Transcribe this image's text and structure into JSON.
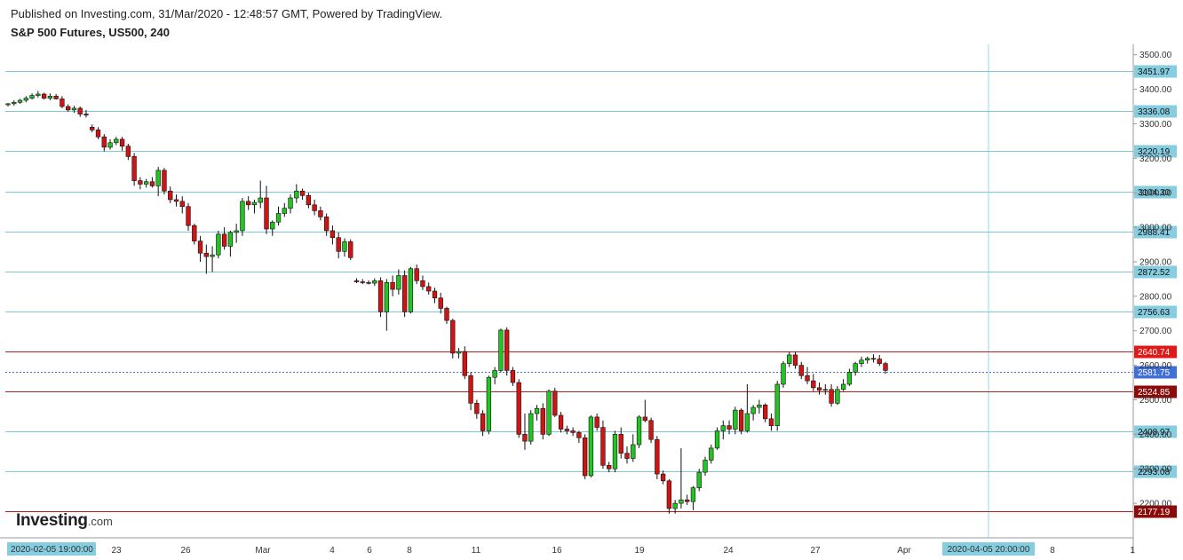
{
  "header": {
    "publish_line": "Published on Investing.com, 31/Mar/2020 - 12:48:57 GMT, Powered by TradingView.",
    "title": "S&P 500 Futures, US500, 240"
  },
  "logo": {
    "name": "Investing",
    "suffix": ".com"
  },
  "colors": {
    "up": "#22c322",
    "down": "#d01414",
    "wick": "#111111",
    "level_line": "#7fc8d8",
    "resistance_line": "#b22222",
    "current_price": "#3f6fd8",
    "label_bg": "#86cde0",
    "crosshair": "#9fd3e2"
  },
  "chart_data": {
    "type": "candlestick",
    "title": "S&P 500 Futures, US500, 240",
    "y_axis": {
      "range": [
        2100,
        3530
      ],
      "ticks": [
        "2200.00",
        "2300.00",
        "2400.00",
        "2500.00",
        "2600.00",
        "2700.00",
        "2800.00",
        "2900.00",
        "3000.00",
        "3100.00",
        "3200.00",
        "3300.00",
        "3400.00",
        "3500.00"
      ]
    },
    "x_axis": {
      "ticks": [
        "23",
        "26",
        "Mar",
        "4",
        "6",
        "8",
        "11",
        "16",
        "19",
        "24",
        "27",
        "Apr",
        "8",
        "1"
      ],
      "start_label": "2020-02-05 19:00:00",
      "crosshair_label": "2020-04-05 20:00:00"
    },
    "horizontal_levels": [
      {
        "value": 3451.97,
        "label": "3451.97",
        "style": "support"
      },
      {
        "value": 3336.08,
        "label": "3336.08",
        "style": "support"
      },
      {
        "value": 3220.19,
        "label": "3220.19",
        "style": "support"
      },
      {
        "value": 3104.3,
        "label": "3104.30",
        "style": "support"
      },
      {
        "value": 2988.41,
        "label": "2988.41",
        "style": "support"
      },
      {
        "value": 2872.52,
        "label": "2872.52",
        "style": "support"
      },
      {
        "value": 2756.63,
        "label": "2756.63",
        "style": "support"
      },
      {
        "value": 2640.74,
        "label": "2640.74",
        "style": "resistance-red"
      },
      {
        "value": 2581.75,
        "label": "2581.75",
        "style": "current"
      },
      {
        "value": 2524.85,
        "label": "2524.85",
        "style": "resistance-dark"
      },
      {
        "value": 2408.97,
        "label": "2408.97",
        "style": "support"
      },
      {
        "value": 2293.08,
        "label": "2293.08",
        "style": "support"
      },
      {
        "value": 2177.19,
        "label": "2177.19",
        "style": "resistance-dark"
      }
    ],
    "candles": [
      [
        3355,
        3360,
        3350,
        3358
      ],
      [
        3358,
        3368,
        3352,
        3362
      ],
      [
        3362,
        3372,
        3358,
        3368
      ],
      [
        3368,
        3380,
        3362,
        3374
      ],
      [
        3374,
        3388,
        3370,
        3382
      ],
      [
        3382,
        3395,
        3376,
        3386
      ],
      [
        3386,
        3390,
        3370,
        3374
      ],
      [
        3374,
        3388,
        3368,
        3380
      ],
      [
        3380,
        3386,
        3370,
        3372
      ],
      [
        3372,
        3380,
        3345,
        3350
      ],
      [
        3350,
        3356,
        3335,
        3340
      ],
      [
        3340,
        3352,
        3332,
        3345
      ],
      [
        3345,
        3350,
        3320,
        3328
      ],
      [
        3328,
        3340,
        3318,
        3325
      ],
      [
        3290,
        3298,
        3275,
        3282
      ],
      [
        3282,
        3290,
        3255,
        3262
      ],
      [
        3262,
        3270,
        3220,
        3232
      ],
      [
        3232,
        3255,
        3225,
        3245
      ],
      [
        3245,
        3262,
        3238,
        3255
      ],
      [
        3255,
        3262,
        3222,
        3235
      ],
      [
        3235,
        3242,
        3195,
        3205
      ],
      [
        3205,
        3215,
        3120,
        3135
      ],
      [
        3135,
        3145,
        3110,
        3125
      ],
      [
        3125,
        3140,
        3115,
        3132
      ],
      [
        3132,
        3145,
        3115,
        3120
      ],
      [
        3120,
        3175,
        3090,
        3165
      ],
      [
        3165,
        3172,
        3095,
        3105
      ],
      [
        3105,
        3118,
        3070,
        3080
      ],
      [
        3080,
        3095,
        3060,
        3075
      ],
      [
        3075,
        3090,
        3040,
        3060
      ],
      [
        3060,
        3070,
        2990,
        3005
      ],
      [
        3005,
        3010,
        2950,
        2960
      ],
      [
        2960,
        2975,
        2900,
        2925
      ],
      [
        2925,
        2950,
        2865,
        2915
      ],
      [
        2915,
        2945,
        2870,
        2920
      ],
      [
        2920,
        2990,
        2910,
        2980
      ],
      [
        2980,
        3000,
        2935,
        2945
      ],
      [
        2945,
        2990,
        2915,
        2985
      ],
      [
        2985,
        3010,
        2955,
        2990
      ],
      [
        2990,
        3085,
        2975,
        3075
      ],
      [
        3075,
        3090,
        3050,
        3065
      ],
      [
        3065,
        3080,
        3040,
        3072
      ],
      [
        3072,
        3135,
        3055,
        3085
      ],
      [
        3085,
        3120,
        2980,
        2995
      ],
      [
        2995,
        3020,
        2975,
        3015
      ],
      [
        3015,
        3060,
        3005,
        3040
      ],
      [
        3040,
        3070,
        3030,
        3055
      ],
      [
        3055,
        3095,
        3040,
        3085
      ],
      [
        3085,
        3125,
        3070,
        3105
      ],
      [
        3105,
        3112,
        3080,
        3092
      ],
      [
        3092,
        3100,
        3055,
        3065
      ],
      [
        3065,
        3080,
        3035,
        3048
      ],
      [
        3048,
        3060,
        3020,
        3030
      ],
      [
        3030,
        3040,
        2975,
        2990
      ],
      [
        2990,
        3005,
        2950,
        2970
      ],
      [
        2970,
        2985,
        2910,
        2930
      ],
      [
        2930,
        2968,
        2915,
        2958
      ],
      [
        2958,
        2965,
        2905,
        2912
      ],
      [
        2845,
        2852,
        2838,
        2842
      ],
      [
        2842,
        2850,
        2835,
        2840
      ],
      [
        2840,
        2846,
        2834,
        2838
      ],
      [
        2838,
        2852,
        2830,
        2845
      ],
      [
        2845,
        2855,
        2740,
        2755
      ],
      [
        2755,
        2850,
        2700,
        2840
      ],
      [
        2840,
        2860,
        2800,
        2820
      ],
      [
        2820,
        2878,
        2805,
        2860
      ],
      [
        2860,
        2875,
        2740,
        2755
      ],
      [
        2755,
        2885,
        2750,
        2880
      ],
      [
        2880,
        2892,
        2835,
        2845
      ],
      [
        2845,
        2860,
        2818,
        2828
      ],
      [
        2828,
        2840,
        2805,
        2815
      ],
      [
        2815,
        2825,
        2780,
        2795
      ],
      [
        2795,
        2810,
        2750,
        2765
      ],
      [
        2765,
        2770,
        2720,
        2730
      ],
      [
        2730,
        2735,
        2620,
        2635
      ],
      [
        2635,
        2650,
        2620,
        2640
      ],
      [
        2640,
        2655,
        2560,
        2570
      ],
      [
        2570,
        2580,
        2470,
        2490
      ],
      [
        2490,
        2500,
        2445,
        2460
      ],
      [
        2460,
        2470,
        2395,
        2410
      ],
      [
        2410,
        2570,
        2400,
        2565
      ],
      [
        2565,
        2595,
        2545,
        2585
      ],
      [
        2585,
        2706,
        2580,
        2702
      ],
      [
        2702,
        2710,
        2570,
        2585
      ],
      [
        2585,
        2595,
        2540,
        2550
      ],
      [
        2550,
        2560,
        2390,
        2400
      ],
      [
        2400,
        2460,
        2355,
        2380
      ],
      [
        2380,
        2470,
        2370,
        2460
      ],
      [
        2460,
        2485,
        2440,
        2475
      ],
      [
        2475,
        2490,
        2385,
        2400
      ],
      [
        2400,
        2530,
        2395,
        2525
      ],
      [
        2525,
        2535,
        2450,
        2455
      ],
      [
        2455,
        2465,
        2405,
        2415
      ],
      [
        2415,
        2425,
        2400,
        2410
      ],
      [
        2410,
        2420,
        2395,
        2405
      ],
      [
        2405,
        2410,
        2375,
        2390
      ],
      [
        2390,
        2400,
        2270,
        2280
      ],
      [
        2280,
        2455,
        2275,
        2450
      ],
      [
        2450,
        2460,
        2410,
        2420
      ],
      [
        2420,
        2440,
        2300,
        2310
      ],
      [
        2310,
        2320,
        2290,
        2300
      ],
      [
        2300,
        2410,
        2290,
        2400
      ],
      [
        2400,
        2420,
        2330,
        2345
      ],
      [
        2345,
        2365,
        2315,
        2330
      ],
      [
        2330,
        2400,
        2320,
        2370
      ],
      [
        2370,
        2455,
        2360,
        2450
      ],
      [
        2450,
        2500,
        2435,
        2440
      ],
      [
        2440,
        2448,
        2375,
        2385
      ],
      [
        2385,
        2395,
        2270,
        2285
      ],
      [
        2285,
        2295,
        2255,
        2265
      ],
      [
        2265,
        2270,
        2170,
        2185
      ],
      [
        2185,
        2210,
        2170,
        2200
      ],
      [
        2200,
        2360,
        2185,
        2210
      ],
      [
        2210,
        2225,
        2195,
        2205
      ],
      [
        2205,
        2250,
        2180,
        2245
      ],
      [
        2245,
        2300,
        2235,
        2290
      ],
      [
        2290,
        2335,
        2280,
        2325
      ],
      [
        2325,
        2370,
        2315,
        2360
      ],
      [
        2360,
        2420,
        2355,
        2410
      ],
      [
        2410,
        2440,
        2385,
        2425
      ],
      [
        2425,
        2440,
        2400,
        2415
      ],
      [
        2415,
        2480,
        2400,
        2470
      ],
      [
        2470,
        2475,
        2400,
        2410
      ],
      [
        2410,
        2545,
        2405,
        2460
      ],
      [
        2460,
        2485,
        2440,
        2478
      ],
      [
        2478,
        2500,
        2460,
        2485
      ],
      [
        2485,
        2490,
        2435,
        2445
      ],
      [
        2445,
        2460,
        2410,
        2425
      ],
      [
        2425,
        2555,
        2410,
        2545
      ],
      [
        2545,
        2612,
        2535,
        2605
      ],
      [
        2605,
        2640,
        2595,
        2630
      ],
      [
        2630,
        2640,
        2590,
        2600
      ],
      [
        2600,
        2610,
        2560,
        2570
      ],
      [
        2570,
        2595,
        2545,
        2555
      ],
      [
        2555,
        2575,
        2525,
        2535
      ],
      [
        2535,
        2550,
        2515,
        2528
      ],
      [
        2528,
        2545,
        2515,
        2530
      ],
      [
        2530,
        2545,
        2480,
        2490
      ],
      [
        2490,
        2540,
        2485,
        2530
      ],
      [
        2530,
        2560,
        2525,
        2545
      ],
      [
        2545,
        2590,
        2540,
        2580
      ],
      [
        2580,
        2610,
        2570,
        2605
      ],
      [
        2605,
        2625,
        2595,
        2615
      ],
      [
        2615,
        2625,
        2605,
        2620
      ],
      [
        2620,
        2632,
        2608,
        2618
      ],
      [
        2618,
        2630,
        2598,
        2605
      ],
      [
        2605,
        2610,
        2575,
        2585
      ]
    ]
  }
}
